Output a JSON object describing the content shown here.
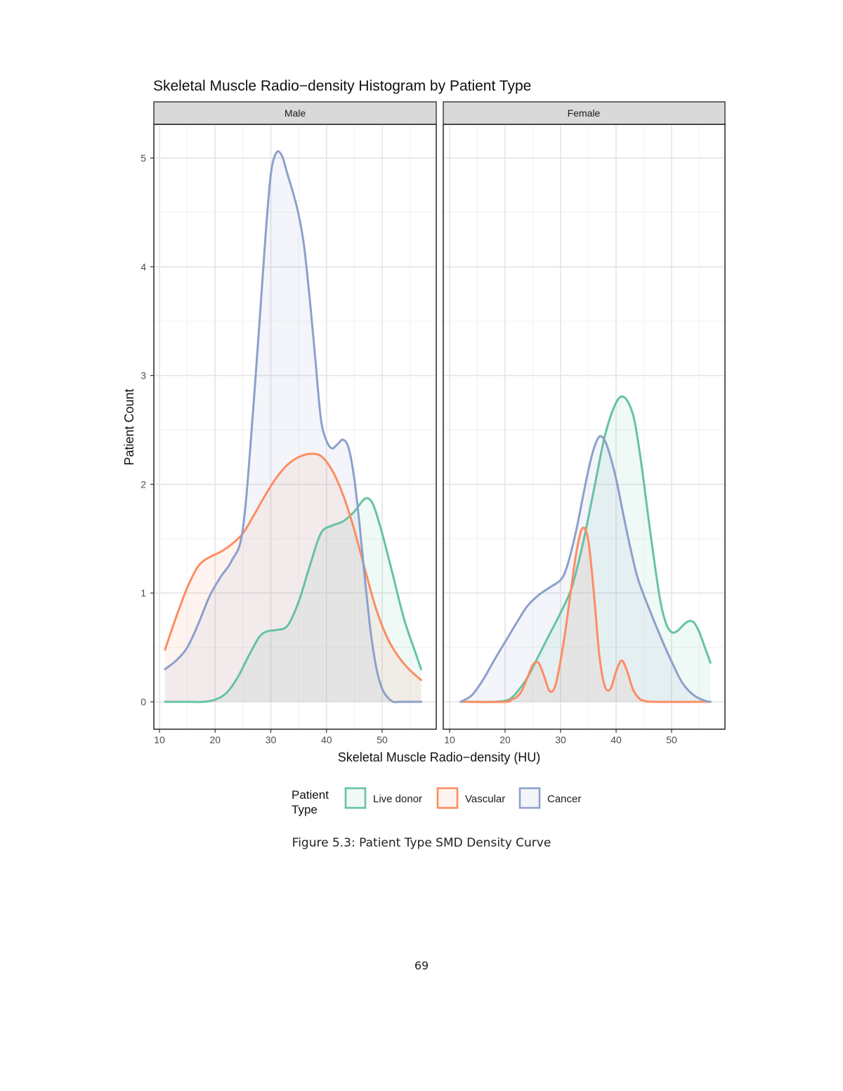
{
  "chart_data": {
    "type": "area",
    "title": "Skeletal Muscle Radio−density Histogram by Patient Type",
    "xlabel": "Skeletal Muscle Radio−density (HU)",
    "ylabel": "Patient Count",
    "xlim": [
      10,
      58
    ],
    "ylim": [
      0,
      5.2
    ],
    "x_ticks": [
      10,
      20,
      30,
      40,
      50
    ],
    "y_ticks": [
      0,
      1,
      2,
      3,
      4,
      5
    ],
    "grid": true,
    "legend": {
      "title": "Patient\nType",
      "placement": "bottom",
      "entries": [
        "Live donor",
        "Vascular",
        "Cancer"
      ]
    },
    "series_colors": {
      "Live donor": "#66c2a5",
      "Vascular": "#fc8d62",
      "Cancer": "#8da0cb"
    },
    "panels": [
      {
        "label": "Male",
        "series": [
          {
            "name": "Live donor",
            "x": [
              11,
              15,
              18,
              20,
              22,
              24,
              26,
              28,
              29.5,
              31,
              33,
              35,
              37,
              39,
              41,
              43,
              45,
              46.5,
              47.5,
              48.5,
              50,
              52,
              54,
              56,
              57
            ],
            "y": [
              0,
              0,
              0,
              0.02,
              0.08,
              0.22,
              0.42,
              0.6,
              0.65,
              0.66,
              0.7,
              0.92,
              1.25,
              1.55,
              1.62,
              1.66,
              1.75,
              1.85,
              1.87,
              1.8,
              1.55,
              1.15,
              0.75,
              0.45,
              0.3
            ]
          },
          {
            "name": "Vascular",
            "x": [
              11,
              13,
              15,
              17,
              19,
              21,
              23,
              25,
              27,
              29,
              31,
              33,
              35,
              37,
              39,
              41,
              43,
              45,
              47,
              49,
              51,
              53,
              55,
              57
            ],
            "y": [
              0.48,
              0.78,
              1.05,
              1.25,
              1.33,
              1.38,
              1.45,
              1.55,
              1.72,
              1.9,
              2.06,
              2.18,
              2.25,
              2.28,
              2.26,
              2.13,
              1.9,
              1.58,
              1.2,
              0.84,
              0.58,
              0.41,
              0.29,
              0.2
            ]
          },
          {
            "name": "Cancer",
            "x": [
              11,
              13,
              15,
              17,
              19,
              21,
              23,
              25,
              27,
              29,
              30,
              31,
              32,
              33,
              34,
              35,
              36,
              37,
              38,
              39,
              40,
              41,
              42,
              43,
              44,
              45,
              46,
              47,
              48,
              49,
              50,
              51,
              52,
              53,
              54,
              55,
              57
            ],
            "y": [
              0.3,
              0.38,
              0.5,
              0.72,
              0.97,
              1.15,
              1.3,
              1.6,
              2.8,
              4.25,
              4.85,
              5.05,
              5.02,
              4.85,
              4.68,
              4.48,
              4.18,
              3.7,
              3.15,
              2.6,
              2.4,
              2.33,
              2.37,
              2.41,
              2.33,
              2.05,
              1.6,
              1.08,
              0.62,
              0.3,
              0.12,
              0.04,
              0,
              0,
              0,
              0,
              0
            ]
          }
        ]
      },
      {
        "label": "Female",
        "series": [
          {
            "name": "Live donor",
            "x": [
              12,
              18,
              20,
              21,
              22,
              24,
              26,
              28,
              30,
              32,
              34,
              36,
              38,
              40,
              41.5,
              43,
              44,
              45,
              46,
              47,
              48,
              49,
              50,
              51,
              52,
              53,
              54,
              55,
              56,
              57
            ],
            "y": [
              0,
              0,
              0.01,
              0.03,
              0.08,
              0.22,
              0.42,
              0.62,
              0.82,
              1.05,
              1.45,
              1.95,
              2.45,
              2.75,
              2.8,
              2.65,
              2.38,
              2.02,
              1.62,
              1.25,
              0.92,
              0.72,
              0.64,
              0.65,
              0.7,
              0.74,
              0.73,
              0.64,
              0.5,
              0.36
            ]
          },
          {
            "name": "Vascular",
            "x": [
              12,
              20,
              21,
              22,
              23,
              24,
              25,
              26,
              27,
              28,
              29,
              30,
              31,
              32,
              33,
              34,
              35,
              36,
              37,
              38,
              39,
              40,
              41,
              42,
              43,
              44,
              45,
              47,
              57
            ],
            "y": [
              0,
              0,
              0.02,
              0.04,
              0.1,
              0.22,
              0.34,
              0.36,
              0.24,
              0.1,
              0.14,
              0.38,
              0.7,
              1.08,
              1.42,
              1.6,
              1.48,
              1.0,
              0.42,
              0.14,
              0.12,
              0.28,
              0.38,
              0.28,
              0.12,
              0.04,
              0.01,
              0,
              0
            ]
          },
          {
            "name": "Cancer",
            "x": [
              12,
              14,
              16,
              18,
              20,
              22,
              24,
              26,
              28,
              30,
              31,
              32,
              33,
              34,
              35,
              36,
              37,
              38,
              39,
              40,
              41,
              42,
              43,
              44,
              46,
              48,
              50,
              52,
              54,
              56,
              57
            ],
            "y": [
              0,
              0.06,
              0.2,
              0.38,
              0.55,
              0.72,
              0.88,
              0.98,
              1.05,
              1.12,
              1.22,
              1.4,
              1.62,
              1.88,
              2.13,
              2.33,
              2.44,
              2.4,
              2.25,
              2.05,
              1.8,
              1.55,
              1.32,
              1.12,
              0.85,
              0.6,
              0.37,
              0.17,
              0.06,
              0.01,
              0
            ]
          }
        ]
      }
    ]
  },
  "caption": "Figure 5.3: Patient Type SMD Density Curve",
  "page_number": "69"
}
